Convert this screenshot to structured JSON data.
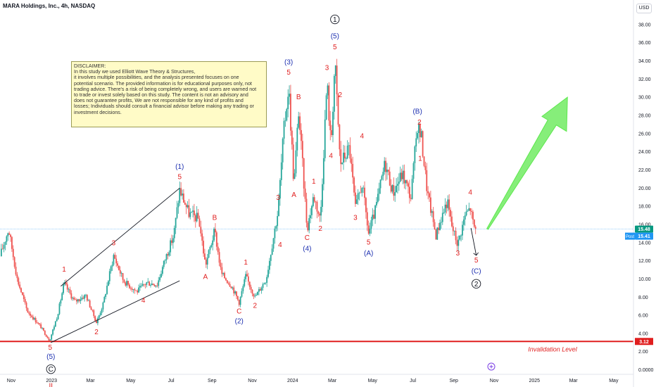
{
  "header": {
    "title": "MARA Holdings, Inc., 4h, NASDAQ",
    "currency": "USD"
  },
  "disclaimer": {
    "lines": [
      "DISCLAIMER:",
      "In this study we used Elliott Wave Theory & Structures,",
      "it involves multiple possibilities, and the analysis presented focuses on one",
      "potential scenario. The provided information is for educational purposes only, not",
      "trading advice. There's a risk of being completely wrong, and users are warned not",
      "to trade or invest solely based on this study. The content is not an advisory and",
      "does not guarantee profits, We are not responsible for any kind of profits and",
      "losses; Individuals should consult a financial advisor before making any trading or",
      "investment decisions."
    ]
  },
  "chart_data": {
    "type": "candlestick",
    "symbol": "MARA",
    "interval": "4h",
    "x_start": "2022-10-15",
    "x_end": "2025-05-31",
    "ylim": [
      -0.5,
      39
    ],
    "y_ticks": [
      "0.0000",
      "2.00",
      "4.00",
      "6.00",
      "8.00",
      "10.00",
      "12.00",
      "14.00",
      "16.00",
      "18.00",
      "20.00",
      "22.00",
      "24.00",
      "26.00",
      "28.00",
      "30.00",
      "32.00",
      "34.00",
      "36.00",
      "38.00"
    ],
    "y_tick_values": [
      0,
      2,
      4,
      6,
      8,
      10,
      12,
      14,
      16,
      18,
      20,
      22,
      24,
      26,
      28,
      30,
      32,
      34,
      36,
      38
    ],
    "x_ticks": [
      {
        "label": "Nov",
        "date": "2022-11-01"
      },
      {
        "label": "2023",
        "date": "2023-01-01"
      },
      {
        "label": "Mar",
        "date": "2023-03-01"
      },
      {
        "label": "May",
        "date": "2023-05-01"
      },
      {
        "label": "Jul",
        "date": "2023-07-01"
      },
      {
        "label": "Sep",
        "date": "2023-09-01"
      },
      {
        "label": "Nov",
        "date": "2023-11-01"
      },
      {
        "label": "2024",
        "date": "2024-01-01"
      },
      {
        "label": "Mar",
        "date": "2024-03-01"
      },
      {
        "label": "May",
        "date": "2024-05-01"
      },
      {
        "label": "Jul",
        "date": "2024-07-01"
      },
      {
        "label": "Sep",
        "date": "2024-09-01"
      },
      {
        "label": "Nov",
        "date": "2024-11-01"
      },
      {
        "label": "2025",
        "date": "2025-01-01"
      },
      {
        "label": "Mar",
        "date": "2025-03-01"
      },
      {
        "label": "May",
        "date": "2025-05-01"
      }
    ],
    "price_path": [
      {
        "date": "2022-10-15",
        "price": 12.5
      },
      {
        "date": "2022-10-28",
        "price": 15.5
      },
      {
        "date": "2022-11-10",
        "price": 10.0
      },
      {
        "date": "2022-11-25",
        "price": 6.5
      },
      {
        "date": "2022-12-15",
        "price": 4.8
      },
      {
        "date": "2022-12-29",
        "price": 3.2
      },
      {
        "date": "2023-01-10",
        "price": 6.0
      },
      {
        "date": "2023-01-20",
        "price": 9.5
      },
      {
        "date": "2023-02-05",
        "price": 7.5
      },
      {
        "date": "2023-02-22",
        "price": 8.2
      },
      {
        "date": "2023-03-10",
        "price": 5.2
      },
      {
        "date": "2023-03-20",
        "price": 7.2
      },
      {
        "date": "2023-04-05",
        "price": 12.6
      },
      {
        "date": "2023-04-20",
        "price": 9.8
      },
      {
        "date": "2023-05-10",
        "price": 8.6
      },
      {
        "date": "2023-05-25",
        "price": 9.6
      },
      {
        "date": "2023-06-10",
        "price": 9.4
      },
      {
        "date": "2023-06-22",
        "price": 12.2
      },
      {
        "date": "2023-07-05",
        "price": 14.8
      },
      {
        "date": "2023-07-14",
        "price": 19.8
      },
      {
        "date": "2023-07-28",
        "price": 17.2
      },
      {
        "date": "2023-08-12",
        "price": 16.6
      },
      {
        "date": "2023-08-22",
        "price": 11.5
      },
      {
        "date": "2023-09-05",
        "price": 15.3
      },
      {
        "date": "2023-09-15",
        "price": 10.6
      },
      {
        "date": "2023-10-01",
        "price": 9.2
      },
      {
        "date": "2023-10-12",
        "price": 7.4
      },
      {
        "date": "2023-10-22",
        "price": 10.3
      },
      {
        "date": "2023-11-05",
        "price": 8.0
      },
      {
        "date": "2023-11-22",
        "price": 10.0
      },
      {
        "date": "2023-12-01",
        "price": 13.8
      },
      {
        "date": "2023-12-10",
        "price": 17.5
      },
      {
        "date": "2023-12-18",
        "price": 25.8
      },
      {
        "date": "2023-12-26",
        "price": 31.3
      },
      {
        "date": "2024-01-03",
        "price": 20.2
      },
      {
        "date": "2024-01-10",
        "price": 28.5
      },
      {
        "date": "2024-01-23",
        "price": 15.5
      },
      {
        "date": "2024-02-02",
        "price": 19.2
      },
      {
        "date": "2024-02-12",
        "price": 16.5
      },
      {
        "date": "2024-02-22",
        "price": 31.8
      },
      {
        "date": "2024-02-28",
        "price": 24.5
      },
      {
        "date": "2024-03-05",
        "price": 34.0
      },
      {
        "date": "2024-03-13",
        "price": 22.6
      },
      {
        "date": "2024-03-27",
        "price": 24.5
      },
      {
        "date": "2024-04-05",
        "price": 17.7
      },
      {
        "date": "2024-04-15",
        "price": 20.5
      },
      {
        "date": "2024-04-25",
        "price": 15.0
      },
      {
        "date": "2024-05-05",
        "price": 17.5
      },
      {
        "date": "2024-05-20",
        "price": 22.8
      },
      {
        "date": "2024-06-01",
        "price": 19.5
      },
      {
        "date": "2024-06-15",
        "price": 21.6
      },
      {
        "date": "2024-06-28",
        "price": 19.0
      },
      {
        "date": "2024-07-08",
        "price": 27.0
      },
      {
        "date": "2024-07-14",
        "price": 25.5
      },
      {
        "date": "2024-07-23",
        "price": 19.5
      },
      {
        "date": "2024-08-05",
        "price": 14.8
      },
      {
        "date": "2024-08-12",
        "price": 16.5
      },
      {
        "date": "2024-08-22",
        "price": 18.6
      },
      {
        "date": "2024-08-29",
        "price": 15.8
      },
      {
        "date": "2024-09-07",
        "price": 13.8
      },
      {
        "date": "2024-09-18",
        "price": 17.0
      },
      {
        "date": "2024-09-26",
        "price": 17.8
      },
      {
        "date": "2024-10-01",
        "price": 15.8
      },
      {
        "date": "2024-10-05",
        "price": 15.4
      }
    ],
    "last_price": 15.41,
    "prev_close": 15.48,
    "last_price_label": "15.41",
    "prev_close_label": "15.48",
    "post_label": "Post",
    "invalidation": {
      "price": 3.12,
      "price_label": "3.12",
      "text": "Invalidation Level"
    },
    "wave_labels": [
      {
        "text": "5",
        "date": "2022-12-30",
        "price": 2.2,
        "color": "#e01e1e"
      },
      {
        "text": "(5)",
        "date": "2022-12-31",
        "price": 1.2,
        "color": "#1c2fb0"
      },
      {
        "text": "C",
        "date": "2022-12-31",
        "price": -0.2,
        "color": "#131722",
        "circled": true
      },
      {
        "text": "II",
        "date": "2022-12-31",
        "price": -2.0,
        "color": "#e01e1e"
      },
      {
        "text": "1",
        "date": "2023-01-20",
        "price": 10.8,
        "color": "#e01e1e"
      },
      {
        "text": "2",
        "date": "2023-03-10",
        "price": 3.9,
        "color": "#e01e1e"
      },
      {
        "text": "3",
        "date": "2023-04-05",
        "price": 13.7,
        "color": "#e01e1e"
      },
      {
        "text": "4",
        "date": "2023-05-20",
        "price": 7.4,
        "color": "#e01e1e"
      },
      {
        "text": "5",
        "date": "2023-07-14",
        "price": 21.0,
        "color": "#e01e1e"
      },
      {
        "text": "(1)",
        "date": "2023-07-14",
        "price": 22.1,
        "color": "#1c2fb0"
      },
      {
        "text": "A",
        "date": "2023-08-22",
        "price": 10.0,
        "color": "#e01e1e"
      },
      {
        "text": "B",
        "date": "2023-09-05",
        "price": 16.5,
        "color": "#e01e1e"
      },
      {
        "text": "C",
        "date": "2023-10-12",
        "price": 6.2,
        "color": "#e01e1e"
      },
      {
        "text": "(2)",
        "date": "2023-10-12",
        "price": 5.1,
        "color": "#1c2fb0"
      },
      {
        "text": "1",
        "date": "2023-10-22",
        "price": 11.6,
        "color": "#e01e1e"
      },
      {
        "text": "2",
        "date": "2023-11-05",
        "price": 6.8,
        "color": "#e01e1e"
      },
      {
        "text": "3",
        "date": "2023-12-10",
        "price": 18.7,
        "color": "#e01e1e"
      },
      {
        "text": "4",
        "date": "2023-12-13",
        "price": 13.5,
        "color": "#e01e1e"
      },
      {
        "text": "5",
        "date": "2023-12-26",
        "price": 32.5,
        "color": "#e01e1e"
      },
      {
        "text": "(3)",
        "date": "2023-12-26",
        "price": 33.6,
        "color": "#1c2fb0"
      },
      {
        "text": "A",
        "date": "2024-01-03",
        "price": 19.0,
        "color": "#e01e1e"
      },
      {
        "text": "B",
        "date": "2024-01-10",
        "price": 29.8,
        "color": "#e01e1e"
      },
      {
        "text": "C",
        "date": "2024-01-23",
        "price": 14.3,
        "color": "#e01e1e"
      },
      {
        "text": "(4)",
        "date": "2024-01-23",
        "price": 13.1,
        "color": "#1c2fb0"
      },
      {
        "text": "1",
        "date": "2024-02-02",
        "price": 20.5,
        "color": "#e01e1e"
      },
      {
        "text": "2",
        "date": "2024-02-12",
        "price": 15.3,
        "color": "#e01e1e"
      },
      {
        "text": "3",
        "date": "2024-02-22",
        "price": 33.0,
        "color": "#e01e1e"
      },
      {
        "text": "4",
        "date": "2024-02-28",
        "price": 23.3,
        "color": "#e01e1e"
      },
      {
        "text": "5",
        "date": "2024-03-05",
        "price": 35.3,
        "color": "#e01e1e"
      },
      {
        "text": "(5)",
        "date": "2024-03-05",
        "price": 36.5,
        "color": "#1c2fb0"
      },
      {
        "text": "1",
        "date": "2024-03-05",
        "price": 38.3,
        "color": "#131722",
        "circled": true
      },
      {
        "text": "2",
        "date": "2024-03-13",
        "price": 30.0,
        "color": "#e01e1e"
      },
      {
        "text": "3",
        "date": "2024-04-05",
        "price": 16.5,
        "color": "#e01e1e"
      },
      {
        "text": "4",
        "date": "2024-04-15",
        "price": 25.5,
        "color": "#e01e1e"
      },
      {
        "text": "5",
        "date": "2024-04-25",
        "price": 13.8,
        "color": "#e01e1e"
      },
      {
        "text": "(A)",
        "date": "2024-04-25",
        "price": 12.6,
        "color": "#1c2fb0"
      },
      {
        "text": "(B)",
        "date": "2024-07-08",
        "price": 28.2,
        "color": "#1c2fb0"
      },
      {
        "text": "2",
        "date": "2024-07-11",
        "price": 27.0,
        "color": "#e01e1e"
      },
      {
        "text": "1",
        "date": "2024-07-12",
        "price": 23.0,
        "color": "#e01e1e"
      },
      {
        "text": "3",
        "date": "2024-09-07",
        "price": 12.6,
        "color": "#e01e1e"
      },
      {
        "text": "4",
        "date": "2024-09-26",
        "price": 19.3,
        "color": "#e01e1e"
      },
      {
        "text": "5",
        "date": "2024-10-05",
        "price": 11.8,
        "color": "#e01e1e"
      },
      {
        "text": "(C)",
        "date": "2024-10-05",
        "price": 10.6,
        "color": "#1c2fb0"
      },
      {
        "text": "2",
        "date": "2024-10-05",
        "price": 9.2,
        "color": "#131722",
        "circled": true
      }
    ],
    "trendlines": [
      {
        "from": {
          "date": "2022-12-31",
          "price": 3.0
        },
        "to": {
          "date": "2023-07-14",
          "price": 9.8
        }
      },
      {
        "from": {
          "date": "2023-01-15",
          "price": 9.2
        },
        "to": {
          "date": "2023-07-14",
          "price": 20.0
        }
      }
    ],
    "projection_arrow": {
      "from": {
        "date": "2024-10-22",
        "price": 15.5
      },
      "to": {
        "date": "2025-02-20",
        "price": 30.0
      },
      "color": "#5de84d"
    },
    "down_arrow": {
      "from": {
        "date": "2024-09-27",
        "price": 15.6
      },
      "to": {
        "date": "2024-10-05",
        "price": 12.6
      }
    },
    "colors": {
      "up": "#26a69a",
      "down": "#ef5350",
      "invalidation": "#e01e1e",
      "price_line": "#2196f3",
      "last_price": "#089981"
    }
  }
}
